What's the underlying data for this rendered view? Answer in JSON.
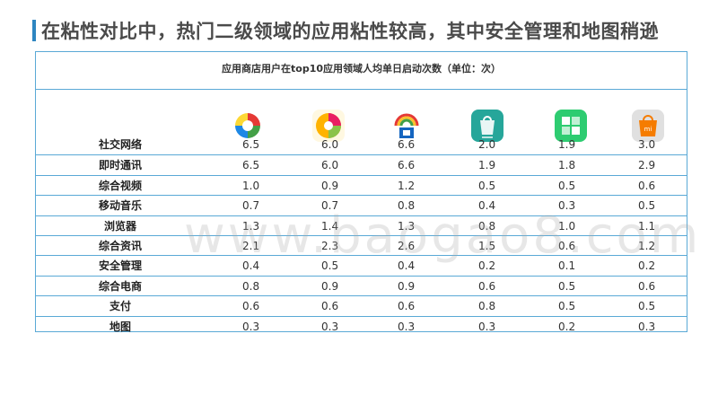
{
  "slide": {
    "title": "在粘性对比中，热门二级领域的应用粘性较高，其中安全管理和地图稍逊"
  },
  "table": {
    "caption": "应用商店用户在top10应用领域人均单日启动次数（单位：次）",
    "apps": [
      {
        "icon": "sogou-app-store-icon",
        "color": "#e53935"
      },
      {
        "icon": "pp-assistant-icon",
        "color": "#f9a825"
      },
      {
        "icon": "wandoujia-icon",
        "color": "#1565c0"
      },
      {
        "icon": "huawei-app-market-icon",
        "color": "#26a69a"
      },
      {
        "icon": "generic-app-market-icon",
        "color": "#2ecc71"
      },
      {
        "icon": "mi-app-store-icon",
        "color": "#f57c00"
      }
    ],
    "rows": [
      {
        "label": "社交网络",
        "values": [
          "6.5",
          "6.0",
          "6.6",
          "2.0",
          "1.9",
          "3.0"
        ]
      },
      {
        "label": "即时通讯",
        "values": [
          "6.5",
          "6.0",
          "6.6",
          "1.9",
          "1.8",
          "2.9"
        ]
      },
      {
        "label": "综合视频",
        "values": [
          "1.0",
          "0.9",
          "1.2",
          "0.5",
          "0.5",
          "0.6"
        ]
      },
      {
        "label": "移动音乐",
        "values": [
          "0.7",
          "0.7",
          "0.8",
          "0.4",
          "0.3",
          "0.5"
        ]
      },
      {
        "label": "浏览器",
        "values": [
          "1.3",
          "1.4",
          "1.3",
          "0.8",
          "1.0",
          "1.1"
        ]
      },
      {
        "label": "综合资讯",
        "values": [
          "2.1",
          "2.3",
          "2.6",
          "1.5",
          "0.6",
          "1.2"
        ]
      },
      {
        "label": "安全管理",
        "values": [
          "0.4",
          "0.5",
          "0.4",
          "0.2",
          "0.1",
          "0.2"
        ]
      },
      {
        "label": "综合电商",
        "values": [
          "0.8",
          "0.9",
          "0.9",
          "0.6",
          "0.5",
          "0.6"
        ]
      },
      {
        "label": "支付",
        "values": [
          "0.6",
          "0.6",
          "0.6",
          "0.8",
          "0.5",
          "0.5"
        ]
      },
      {
        "label": "地图",
        "values": [
          "0.3",
          "0.3",
          "0.3",
          "0.3",
          "0.2",
          "0.3"
        ]
      }
    ]
  },
  "watermark": "www.baogao8.com"
}
